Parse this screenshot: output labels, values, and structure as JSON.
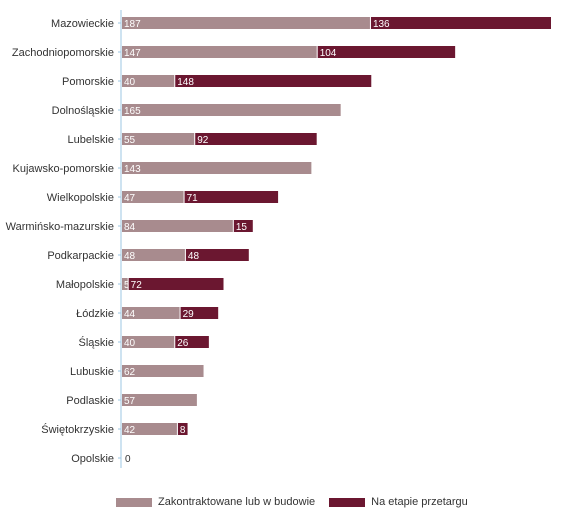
{
  "chart_data": {
    "type": "bar",
    "orientation": "horizontal",
    "stacked": true,
    "categories": [
      "Mazowieckie",
      "Zachodniopomorskie",
      "Pomorskie",
      "Dolnośląskie",
      "Lubelskie",
      "Kujawsko-pomorskie",
      "Wielkopolskie",
      "Warmińsko-mazurskie",
      "Podkarpackie",
      "Małopolskie",
      "Łódzkie",
      "Śląskie",
      "Lubuskie",
      "Podlaskie",
      "Świętokrzyskie",
      "Opolskie"
    ],
    "series": [
      {
        "name": "Zakontraktowane lub w budowie",
        "color": "#a88b8e",
        "values": [
          187,
          147,
          40,
          165,
          55,
          143,
          47,
          84,
          48,
          5,
          44,
          40,
          62,
          57,
          42,
          0
        ]
      },
      {
        "name": "Na etapie przetargu",
        "color": "#6b1730",
        "values": [
          136,
          104,
          148,
          0,
          92,
          0,
          71,
          15,
          48,
          72,
          29,
          26,
          0,
          0,
          8,
          0
        ]
      }
    ],
    "xlim": [
      0,
      323
    ],
    "grid": false,
    "legend_position": "bottom"
  }
}
